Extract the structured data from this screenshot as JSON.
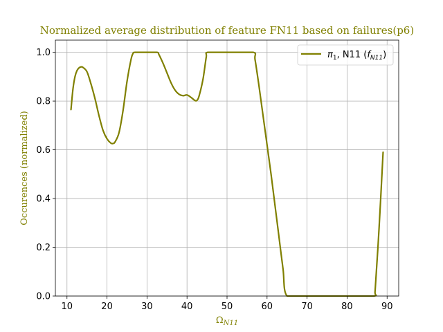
{
  "chart_data": {
    "type": "line",
    "title": "Normalized average distribution of feature FN11 based on failures(p6)",
    "xlabel": "Ω",
    "xlabel_sub": "N11",
    "ylabel": "Occurences (normalized)",
    "xlim": [
      7.1,
      92.9
    ],
    "ylim": [
      0.0,
      1.05
    ],
    "xticks": [
      10,
      20,
      30,
      40,
      50,
      60,
      70,
      80,
      90
    ],
    "yticks": [
      0.0,
      0.2,
      0.4,
      0.6,
      0.8,
      1.0
    ],
    "xtick_labels": [
      "10",
      "20",
      "30",
      "40",
      "50",
      "60",
      "70",
      "80",
      "90"
    ],
    "ytick_labels": [
      "0.0",
      "0.2",
      "0.4",
      "0.6",
      "0.8",
      "1.0"
    ],
    "grid": true,
    "legend_position": "top-right",
    "series": [
      {
        "legend_parts": {
          "pi": "π",
          "pi_sub": "1",
          "mid": ", N11 (",
          "f": "f",
          "f_sub": "N11",
          "close": ")"
        },
        "color": "#808000",
        "points": [
          [
            11.0,
            0.765
          ],
          [
            11.5,
            0.85
          ],
          [
            12.0,
            0.9
          ],
          [
            12.5,
            0.925
          ],
          [
            13.0,
            0.936
          ],
          [
            13.5,
            0.94
          ],
          [
            14.0,
            0.938
          ],
          [
            15.0,
            0.92
          ],
          [
            16.0,
            0.87
          ],
          [
            17.0,
            0.81
          ],
          [
            18.0,
            0.74
          ],
          [
            19.0,
            0.68
          ],
          [
            20.0,
            0.645
          ],
          [
            21.0,
            0.627
          ],
          [
            21.5,
            0.626
          ],
          [
            22.0,
            0.632
          ],
          [
            23.0,
            0.67
          ],
          [
            24.0,
            0.76
          ],
          [
            25.0,
            0.88
          ],
          [
            26.0,
            0.97
          ],
          [
            26.5,
            0.995
          ],
          [
            27.0,
            1.0
          ],
          [
            30.0,
            1.0
          ],
          [
            32.5,
            1.0
          ],
          [
            33.0,
            0.99
          ],
          [
            34.0,
            0.955
          ],
          [
            35.0,
            0.915
          ],
          [
            36.0,
            0.875
          ],
          [
            37.0,
            0.845
          ],
          [
            38.0,
            0.828
          ],
          [
            39.0,
            0.822
          ],
          [
            40.0,
            0.825
          ],
          [
            41.0,
            0.815
          ],
          [
            42.0,
            0.802
          ],
          [
            42.5,
            0.803
          ],
          [
            43.0,
            0.82
          ],
          [
            44.0,
            0.89
          ],
          [
            44.8,
            0.98
          ],
          [
            45.2,
            1.0
          ],
          [
            50.0,
            1.0
          ],
          [
            56.5,
            1.0
          ],
          [
            57.0,
            0.97
          ],
          [
            58.0,
            0.86
          ],
          [
            59.0,
            0.74
          ],
          [
            60.0,
            0.62
          ],
          [
            61.0,
            0.5
          ],
          [
            62.0,
            0.37
          ],
          [
            63.0,
            0.24
          ],
          [
            64.0,
            0.11
          ],
          [
            65.0,
            0.0
          ],
          [
            70.0,
            0.0
          ],
          [
            80.0,
            0.0
          ],
          [
            86.7,
            0.0
          ],
          [
            87.0,
            0.02
          ],
          [
            88.0,
            0.28
          ],
          [
            89.0,
            0.59
          ]
        ]
      }
    ]
  }
}
